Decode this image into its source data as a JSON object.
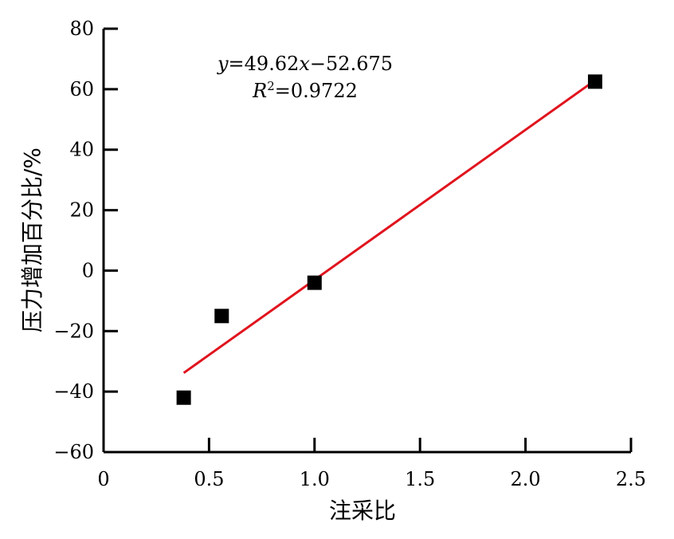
{
  "chart_data": {
    "type": "scatter",
    "xlabel": "注采比",
    "ylabel": "压力增加百分比/%",
    "xlim": [
      0,
      2.5
    ],
    "ylim": [
      -60,
      80
    ],
    "x_ticks": [
      0,
      0.5,
      1.0,
      1.5,
      2.0,
      2.5
    ],
    "x_tick_labels": [
      "0",
      "0.5",
      "1.0",
      "1.5",
      "2.0",
      "2.5"
    ],
    "y_ticks": [
      -60,
      -40,
      -20,
      0,
      20,
      40,
      60,
      80
    ],
    "y_tick_labels": [
      "−60",
      "−40",
      "−20",
      "0",
      "20",
      "40",
      "60",
      "80"
    ],
    "grid": false,
    "series": [
      {
        "marker": "square",
        "color": "#000000",
        "points": [
          {
            "x": 0.38,
            "y": -42
          },
          {
            "x": 0.56,
            "y": -15
          },
          {
            "x": 1.0,
            "y": -4
          },
          {
            "x": 2.33,
            "y": 62.5
          }
        ]
      }
    ],
    "fit_line": {
      "slope": 49.62,
      "intercept": -52.675,
      "x_range": [
        0.38,
        2.33
      ],
      "color": "#e0141e"
    },
    "annotations": {
      "equation": {
        "y_var": "y",
        "eq_mid": "=49.62",
        "x_var": "x",
        "eq_tail": "−52.675"
      },
      "r_squared": {
        "r_var": "R",
        "sup": "2",
        "value": "=0.9722"
      }
    }
  }
}
